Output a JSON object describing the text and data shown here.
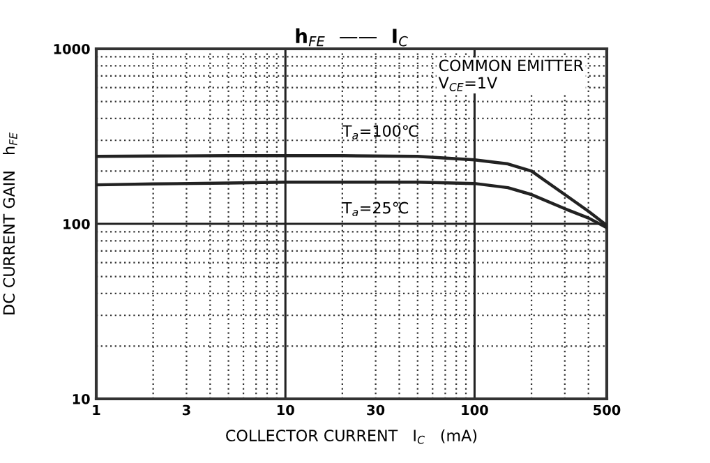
{
  "chart_data": {
    "type": "line",
    "title": "h$_{FE}$  ——  I$_{C}$",
    "xlabel": "COLLECTOR CURRENT   I$_{C}$   (mA)",
    "ylabel": "DC CURRENT GAIN   h$_{FE}$",
    "x": [
      1,
      2,
      5,
      10,
      20,
      50,
      100,
      150,
      200,
      300,
      400,
      500
    ],
    "series": [
      {
        "name": "T$_{a}$=100℃",
        "color": "#222222",
        "values": [
          243,
          244,
          245,
          245,
          245,
          243,
          232,
          220,
          200,
          147,
          118,
          98
        ]
      },
      {
        "name": "T$_{a}$=25℃",
        "color": "#222222",
        "values": [
          167,
          169,
          171,
          173,
          173,
          173,
          170,
          161,
          147,
          122,
          108,
          95
        ]
      }
    ],
    "annotations": [
      "COMMON EMITTER\nV$_{CE}$=1V"
    ],
    "log": "xy",
    "xlim": [
      1,
      500
    ],
    "ylim": [
      10,
      1000
    ],
    "xticks": [
      1,
      3,
      10,
      30,
      100,
      500
    ],
    "yticks": [
      10,
      100,
      1000
    ],
    "grid": true,
    "legend": false,
    "marker": "none",
    "line_style": "solid"
  }
}
